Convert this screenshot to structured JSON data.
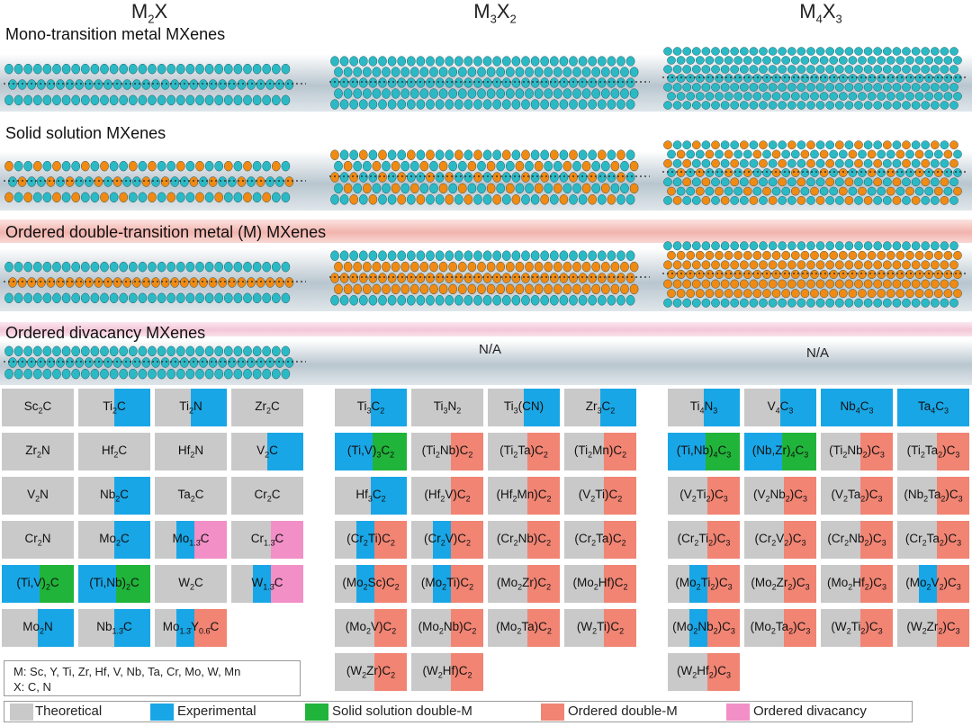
{
  "columns": [
    {
      "id": "m2x",
      "m": "M",
      "ms": "2",
      "x": "X",
      "xs": ""
    },
    {
      "id": "m3x2",
      "m": "M",
      "ms": "3",
      "x": "X",
      "xs": "2"
    },
    {
      "id": "m4x3",
      "m": "M",
      "ms": "4",
      "x": "X",
      "xs": "3"
    }
  ],
  "rows": [
    {
      "id": "mono",
      "title": "Mono-transition metal MXenes",
      "band": "gray",
      "na_m3x2": false,
      "na_m4x3": false
    },
    {
      "id": "solid",
      "title": "Solid solution MXenes",
      "band": "lower",
      "na_m3x2": false,
      "na_m4x3": false
    },
    {
      "id": "ordered_double",
      "title": "Ordered double-transition metal (M) MXenes",
      "band": "red",
      "na_m3x2": false,
      "na_m4x3": false
    },
    {
      "id": "divacancy",
      "title": "Ordered divacancy MXenes",
      "band": "pink",
      "na_m3x2": true,
      "na_m4x3": true
    }
  ],
  "na_label": "N/A",
  "colors": {
    "theoretical": "#c9c9c9",
    "experimental": "#19a6e6",
    "solid_solution": "#20b43a",
    "ordered_double": "#f18473",
    "divacancy": "#f28fc7",
    "atom_m": "#2bbac5",
    "atom_m2": "#f08a12",
    "atom_x": "#222222"
  },
  "tables": {
    "m2x": [
      [
        {
          "p": [
            "Sc",
            "2",
            "C"
          ],
          "c": []
        },
        {
          "p": [
            "Ti",
            "2",
            "C"
          ],
          "c": [
            "experimental"
          ]
        },
        {
          "p": [
            "Ti",
            "2",
            "N"
          ],
          "c": [
            "experimental"
          ]
        },
        {
          "p": [
            "Zr",
            "2",
            "C"
          ],
          "c": []
        }
      ],
      [
        {
          "p": [
            "Zr",
            "2",
            "N"
          ],
          "c": []
        },
        {
          "p": [
            "Hf",
            "2",
            "C"
          ],
          "c": []
        },
        {
          "p": [
            "Hf",
            "2",
            "N"
          ],
          "c": []
        },
        {
          "p": [
            "V",
            "2",
            "C"
          ],
          "c": [
            "experimental"
          ]
        }
      ],
      [
        {
          "p": [
            "V",
            "2",
            "N"
          ],
          "c": []
        },
        {
          "p": [
            "Nb",
            "2",
            "C"
          ],
          "c": [
            "experimental"
          ]
        },
        {
          "p": [
            "Ta",
            "2",
            "C"
          ],
          "c": []
        },
        {
          "p": [
            "Cr",
            "2",
            "C"
          ],
          "c": []
        }
      ],
      [
        {
          "p": [
            "Cr",
            "2",
            "N"
          ],
          "c": []
        },
        {
          "p": [
            "Mo",
            "2",
            "C"
          ],
          "c": [
            "experimental"
          ]
        },
        {
          "p": [
            "Mo",
            "1.3̄",
            "C"
          ],
          "c": [
            "experimental",
            "divacancy"
          ]
        },
        {
          "p": [
            "Cr",
            "1.3̄",
            "C"
          ],
          "c": [
            "divacancy"
          ]
        }
      ],
      [
        {
          "p": [
            "(Ti,V)",
            "2",
            "C"
          ],
          "c": [
            "experimental",
            "solid_solution"
          ]
        },
        {
          "p": [
            "(Ti,Nb)",
            "2",
            "C"
          ],
          "c": [
            "experimental",
            "solid_solution"
          ]
        },
        {
          "p": [
            "W",
            "2",
            "C"
          ],
          "c": []
        },
        {
          "p": [
            "W",
            "1.3̄",
            "C"
          ],
          "c": [
            "experimental",
            "divacancy"
          ]
        }
      ],
      [
        {
          "p": [
            "Mo",
            "2",
            "N"
          ],
          "c": [
            "experimental"
          ]
        },
        {
          "p": [
            "Nb",
            "1.3̄",
            "C"
          ],
          "c": [
            "experimental"
          ]
        },
        {
          "p": [
            "Mo",
            "1.3̄",
            "Y",
            "0.6̄",
            "C"
          ],
          "c": [
            "experimental",
            "ordered_double"
          ]
        }
      ]
    ],
    "m3x2": [
      [
        {
          "p": [
            "Ti",
            "3",
            "C",
            "2"
          ],
          "c": [
            "experimental"
          ]
        },
        {
          "p": [
            "Ti",
            "3",
            "N",
            "2"
          ],
          "c": []
        },
        {
          "p": [
            "Ti",
            "3",
            "(CN)"
          ],
          "c": [
            "experimental"
          ]
        },
        {
          "p": [
            "Zr",
            "3",
            "C",
            "2"
          ],
          "c": [
            "experimental"
          ]
        }
      ],
      [
        {
          "p": [
            "(Ti,V)",
            "3",
            "C",
            "2"
          ],
          "c": [
            "experimental",
            "solid_solution"
          ]
        },
        {
          "p": [
            "(Ti",
            "2",
            "Nb)C",
            "2"
          ],
          "c": [
            "ordered_double"
          ]
        },
        {
          "p": [
            "(Ti",
            "2",
            "Ta)C",
            "2"
          ],
          "c": [
            "ordered_double"
          ]
        },
        {
          "p": [
            "(Ti",
            "2",
            "Mn)C",
            "2"
          ],
          "c": [
            "ordered_double"
          ]
        }
      ],
      [
        {
          "p": [
            "Hf",
            "3",
            "C",
            "2"
          ],
          "c": [
            "experimental"
          ]
        },
        {
          "p": [
            "(Hf",
            "2",
            "V)C",
            "2"
          ],
          "c": [
            "ordered_double"
          ]
        },
        {
          "p": [
            "(Hf",
            "2",
            "Mn)C",
            "2"
          ],
          "c": [
            "ordered_double"
          ]
        },
        {
          "p": [
            "(V",
            "2",
            "Ti)C",
            "2"
          ],
          "c": [
            "ordered_double"
          ]
        }
      ],
      [
        {
          "p": [
            "(Cr",
            "2",
            "Ti)C",
            "2"
          ],
          "c": [
            "experimental",
            "ordered_double"
          ]
        },
        {
          "p": [
            "(Cr",
            "2",
            "V)C",
            "2"
          ],
          "c": [
            "experimental",
            "ordered_double"
          ]
        },
        {
          "p": [
            "(Cr",
            "2",
            "Nb)C",
            "2"
          ],
          "c": [
            "ordered_double"
          ]
        },
        {
          "p": [
            "(Cr",
            "2",
            "Ta)C",
            "2"
          ],
          "c": [
            "ordered_double"
          ]
        }
      ],
      [
        {
          "p": [
            "(Mo",
            "2",
            "Sc)C",
            "2"
          ],
          "c": [
            "experimental",
            "ordered_double"
          ]
        },
        {
          "p": [
            "(Mo",
            "2",
            "Ti)C",
            "2"
          ],
          "c": [
            "experimental",
            "ordered_double"
          ]
        },
        {
          "p": [
            "(Mo",
            "2",
            "Zr)C",
            "2"
          ],
          "c": [
            "ordered_double"
          ]
        },
        {
          "p": [
            "(Mo",
            "2",
            "Hf)C",
            "2"
          ],
          "c": [
            "ordered_double"
          ]
        }
      ],
      [
        {
          "p": [
            "(Mo",
            "2",
            "V)C",
            "2"
          ],
          "c": [
            "ordered_double"
          ]
        },
        {
          "p": [
            "(Mo",
            "2",
            "Nb)C",
            "2"
          ],
          "c": [
            "ordered_double"
          ]
        },
        {
          "p": [
            "(Mo",
            "2",
            "Ta)C",
            "2"
          ],
          "c": [
            "ordered_double"
          ]
        },
        {
          "p": [
            "(W",
            "2",
            "Ti)C",
            "2"
          ],
          "c": [
            "ordered_double"
          ]
        }
      ],
      [
        {
          "p": [
            "(W",
            "2",
            "Zr)C",
            "2"
          ],
          "c": [
            "ordered_double"
          ]
        },
        {
          "p": [
            "(W",
            "2",
            "Hf)C",
            "2"
          ],
          "c": [
            "ordered_double"
          ]
        }
      ]
    ],
    "m4x3": [
      [
        {
          "p": [
            "Ti",
            "4",
            "N",
            "3"
          ],
          "c": [
            "experimental"
          ]
        },
        {
          "p": [
            "V",
            "4",
            "C",
            "3"
          ],
          "c": [
            "experimental"
          ]
        },
        {
          "p": [
            "Nb",
            "4",
            "C",
            "3"
          ],
          "c": [
            "experimental_full"
          ]
        },
        {
          "p": [
            "Ta",
            "4",
            "C",
            "3"
          ],
          "c": [
            "experimental_full"
          ]
        }
      ],
      [
        {
          "p": [
            "(Ti,Nb)",
            "4",
            "C",
            "3"
          ],
          "c": [
            "experimental",
            "solid_solution"
          ]
        },
        {
          "p": [
            "(Nb,Zr)",
            "4",
            "C",
            "3"
          ],
          "c": [
            "experimental",
            "solid_solution"
          ]
        },
        {
          "p": [
            "(Ti",
            "2",
            "Nb",
            "2",
            ")C",
            "3"
          ],
          "c": [
            "ordered_double"
          ]
        },
        {
          "p": [
            "(Ti",
            "2",
            "Ta",
            "2",
            ")C",
            "3"
          ],
          "c": [
            "ordered_double"
          ]
        }
      ],
      [
        {
          "p": [
            "(V",
            "2",
            "Ti",
            "2",
            ")C",
            "3"
          ],
          "c": [
            "ordered_double"
          ]
        },
        {
          "p": [
            "(V",
            "2",
            "Nb",
            "2",
            ")C",
            "3"
          ],
          "c": [
            "ordered_double"
          ]
        },
        {
          "p": [
            "(V",
            "2",
            "Ta",
            "2",
            ")C",
            "3"
          ],
          "c": [
            "ordered_double"
          ]
        },
        {
          "p": [
            "(Nb",
            "2",
            "Ta",
            "2",
            ")C",
            "3"
          ],
          "c": [
            "ordered_double"
          ]
        }
      ],
      [
        {
          "p": [
            "(Cr",
            "2",
            "Ti",
            "2",
            ")C",
            "3"
          ],
          "c": [
            "ordered_double"
          ]
        },
        {
          "p": [
            "(Cr",
            "2",
            "V",
            "2",
            ")C",
            "3"
          ],
          "c": [
            "ordered_double"
          ]
        },
        {
          "p": [
            "(Cr",
            "2",
            "Nb",
            "2",
            ")C",
            "3"
          ],
          "c": [
            "ordered_double"
          ]
        },
        {
          "p": [
            "(Cr",
            "2",
            "Ta",
            "2",
            ")C",
            "3"
          ],
          "c": [
            "ordered_double"
          ]
        }
      ],
      [
        {
          "p": [
            "(Mo",
            "2",
            "Ti",
            "2",
            ")C",
            "3"
          ],
          "c": [
            "experimental",
            "ordered_double"
          ]
        },
        {
          "p": [
            "(Mo",
            "2",
            "Zr",
            "2",
            ")C",
            "3"
          ],
          "c": [
            "ordered_double"
          ]
        },
        {
          "p": [
            "(Mo",
            "2",
            "Hf",
            "2",
            ")C",
            "3"
          ],
          "c": [
            "ordered_double"
          ]
        },
        {
          "p": [
            "(Mo",
            "2",
            "V",
            "2",
            ")C",
            "3"
          ],
          "c": [
            "experimental",
            "ordered_double"
          ]
        }
      ],
      [
        {
          "p": [
            "(Mo",
            "2",
            "Nb",
            "2",
            ")C",
            "3"
          ],
          "c": [
            "experimental",
            "ordered_double"
          ]
        },
        {
          "p": [
            "(Mo",
            "2",
            "Ta",
            "2",
            ")C",
            "3"
          ],
          "c": [
            "ordered_double"
          ]
        },
        {
          "p": [
            "(W",
            "2",
            "Ti",
            "2",
            ")C",
            "3"
          ],
          "c": [
            "ordered_double"
          ]
        },
        {
          "p": [
            "(W",
            "2",
            "Zr",
            "2",
            ")C",
            "3"
          ],
          "c": [
            "ordered_double"
          ]
        }
      ],
      [
        {
          "p": [
            "(W",
            "2",
            "Hf",
            "2",
            ")C",
            "3"
          ],
          "c": [
            "ordered_double"
          ]
        }
      ]
    ]
  },
  "definitions": {
    "m_line": "M: Sc, Y, Ti, Zr, Hf, V, Nb, Ta, Cr, Mo, W, Mn",
    "x_line": "X: C, N"
  },
  "legend": [
    {
      "key": "theoretical",
      "label": "Theoretical"
    },
    {
      "key": "experimental",
      "label": "Experimental"
    },
    {
      "key": "solid_solution",
      "label": "Solid solution double-M"
    },
    {
      "key": "ordered_double",
      "label": "Ordered double-M"
    },
    {
      "key": "divacancy",
      "label": "Ordered divacancy"
    }
  ]
}
